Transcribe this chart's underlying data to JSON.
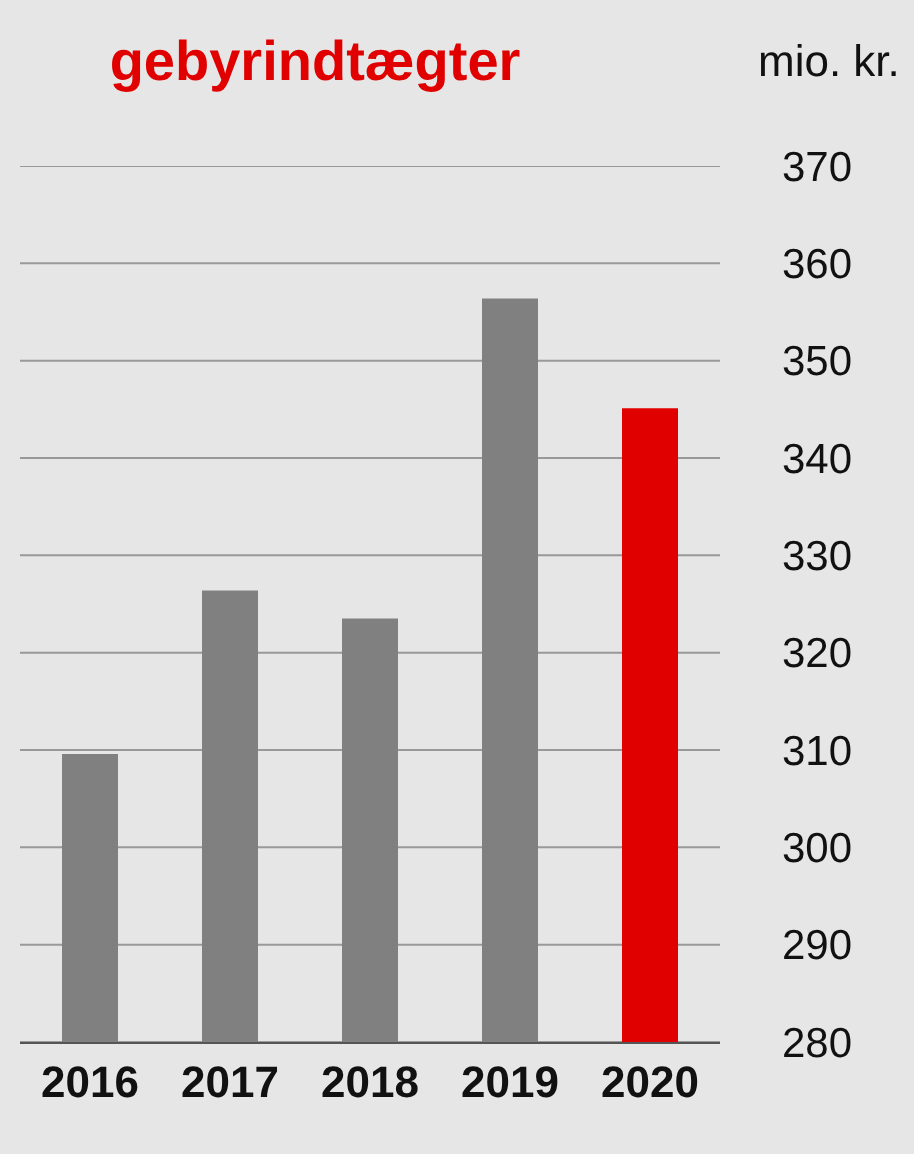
{
  "chart_data": {
    "type": "bar",
    "title": "gebyrindtægter",
    "ylabel": "mio. kr.",
    "categories": [
      "2016",
      "2017",
      "2018",
      "2019",
      "2020"
    ],
    "values": [
      309.6,
      326.4,
      323.5,
      356.4,
      345.1
    ],
    "colors": [
      "#808080",
      "#808080",
      "#808080",
      "#808080",
      "#e00000"
    ],
    "ylim": [
      280,
      370
    ],
    "yticks": [
      280,
      290,
      300,
      310,
      320,
      330,
      340,
      350,
      360,
      370
    ],
    "grid": "y"
  }
}
